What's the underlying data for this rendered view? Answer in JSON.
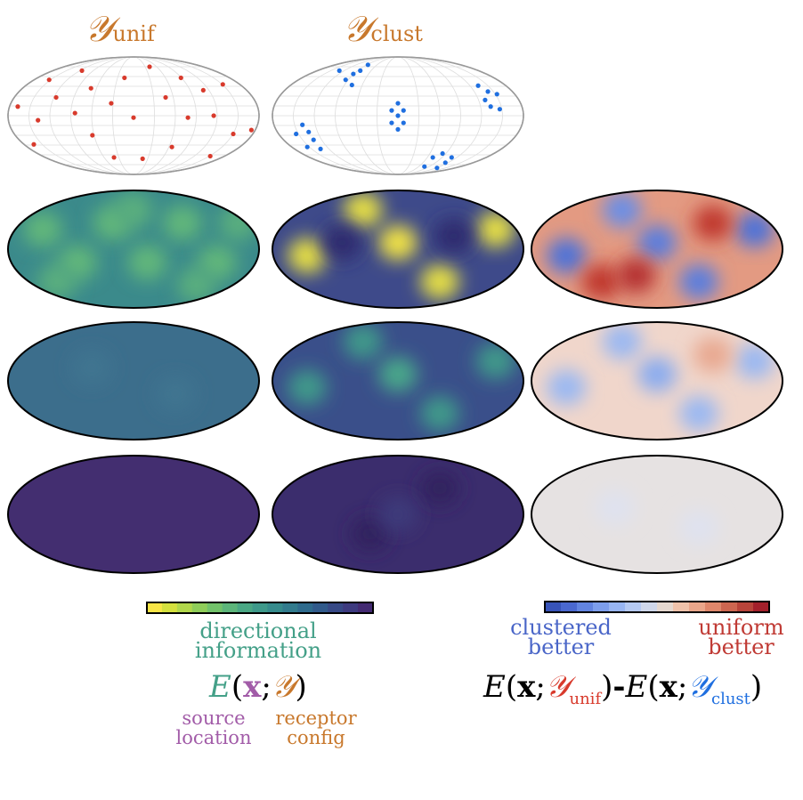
{
  "titles": {
    "unif_symbol": "𝒴",
    "unif_sub": "unif",
    "clust_symbol": "𝒴",
    "clust_sub": "clust"
  },
  "colors": {
    "receptor": "#c8782c",
    "uniform_dots": "#d83a2c",
    "clustered_dots": "#1f6fe0",
    "info": "#44a088",
    "source": "#a25ca8",
    "clustered_better": "#4a66c8",
    "uniform_better": "#c03a34"
  },
  "receptor_configs": {
    "unif": [
      [
        -166,
        14
      ],
      [
        -137,
        -7
      ],
      [
        -143,
        -44
      ],
      [
        -111,
        28
      ],
      [
        -121,
        55
      ],
      [
        -84,
        4
      ],
      [
        -74,
        69
      ],
      [
        -61,
        42
      ],
      [
        -59,
        -30
      ],
      [
        -32,
        19
      ],
      [
        -28,
        -64
      ],
      [
        0,
        -3
      ],
      [
        -13,
        58
      ],
      [
        23,
        75
      ],
      [
        13,
        -66
      ],
      [
        46,
        28
      ],
      [
        55,
        -48
      ],
      [
        68,
        58
      ],
      [
        78,
        -3
      ],
      [
        100,
        39
      ],
      [
        115,
        0
      ],
      [
        110,
        -62
      ],
      [
        128,
        48
      ],
      [
        143,
        -28
      ],
      [
        169,
        -22
      ]
    ],
    "clust": [
      [
        -84,
        69
      ],
      [
        -75,
        55
      ],
      [
        -64,
        64
      ],
      [
        -54,
        69
      ],
      [
        -43,
        78
      ],
      [
        -66,
        47
      ],
      [
        0,
        19
      ],
      [
        -9,
        8
      ],
      [
        8,
        8
      ],
      [
        0,
        0
      ],
      [
        -9,
        -11
      ],
      [
        8,
        -11
      ],
      [
        0,
        -21
      ],
      [
        -137,
        -14
      ],
      [
        -128,
        -25
      ],
      [
        -146,
        -28
      ],
      [
        -121,
        -37
      ],
      [
        -130,
        -48
      ],
      [
        -111,
        -51
      ],
      [
        115,
        46
      ],
      [
        129,
        37
      ],
      [
        142,
        33
      ],
      [
        125,
        24
      ],
      [
        133,
        14
      ],
      [
        146,
        10
      ],
      [
        38,
        -78
      ],
      [
        50,
        -64
      ],
      [
        64,
        -58
      ],
      [
        56,
        -80
      ],
      [
        68,
        -72
      ],
      [
        77,
        -64
      ]
    ]
  },
  "colorbars": {
    "viridis": [
      "#f8e546",
      "#d4e03e",
      "#b1d74b",
      "#8fcd59",
      "#72c26a",
      "#5cb57a",
      "#4aa784",
      "#3e998a",
      "#368b8c",
      "#327b8d",
      "#2f6b8d",
      "#315a8b",
      "#374986",
      "#3d3a7f",
      "#432a72"
    ],
    "coolwarm": [
      "#3753b8",
      "#4a68cf",
      "#6284e0",
      "#7d9eec",
      "#98b5f2",
      "#b5c9f2",
      "#cfd7ea",
      "#e5d8cf",
      "#efc2aa",
      "#eaa68a",
      "#df876b",
      "#cd6650",
      "#b8443a",
      "#a3202b"
    ]
  },
  "legend_left": {
    "label_line1": "directional",
    "label_line2": "information",
    "eq_E": "E",
    "eq_open": "(",
    "eq_x": "x",
    "eq_semi": ";",
    "eq_Y": "𝒴",
    "eq_close": ")",
    "source_line1": "source",
    "source_line2": "location",
    "receptor_line1": "receptor",
    "receptor_line2": "config"
  },
  "legend_right": {
    "left_line1": "clustered",
    "left_line2": "better",
    "right_line1": "uniform",
    "right_line2": "better",
    "eq": {
      "E1": "E",
      "open1": "(",
      "x1": "x",
      "semi1": ";",
      "Y1": "𝒴",
      "sub1": "unif",
      "close1": ")",
      "minus": "-",
      "E2": "E",
      "open2": "(",
      "x2": "x",
      "semi2": ";",
      "Y2": "𝒴",
      "sub2": "clust",
      "close2": ")"
    }
  }
}
